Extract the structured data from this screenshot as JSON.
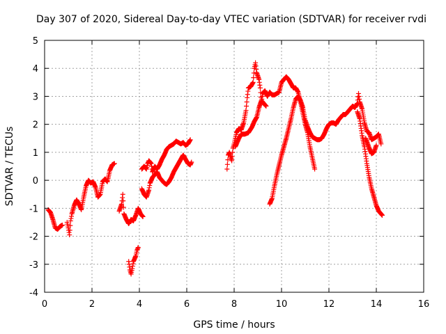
{
  "chart_data": {
    "type": "scatter",
    "title": "Day 307 of 2020, Sidereal Day-to-day VTEC variation (SDTVAR) for receiver rvdi",
    "xlabel": "GPS time / hours",
    "ylabel": "SDTVAR / TECUs",
    "xlim": [
      0,
      16
    ],
    "ylim": [
      -4,
      5
    ],
    "xticks": [
      0,
      2,
      4,
      6,
      8,
      10,
      12,
      14,
      16
    ],
    "yticks": [
      -4,
      -3,
      -2,
      -1,
      0,
      1,
      2,
      3,
      4,
      5
    ],
    "grid": true,
    "marker": "+",
    "color": "#ff0000",
    "segments": [
      [
        [
          0.15,
          -1.05
        ],
        [
          0.25,
          -1.15
        ],
        [
          0.35,
          -1.4
        ],
        [
          0.45,
          -1.7
        ],
        [
          0.55,
          -1.75
        ],
        [
          0.65,
          -1.65
        ],
        [
          0.75,
          -1.6
        ]
      ],
      [
        [
          0.95,
          -1.5
        ],
        [
          1.0,
          -1.7
        ],
        [
          1.05,
          -1.95
        ],
        [
          1.1,
          -1.45
        ],
        [
          1.15,
          -1.2
        ],
        [
          1.25,
          -0.9
        ],
        [
          1.35,
          -0.7
        ],
        [
          1.45,
          -0.85
        ],
        [
          1.55,
          -1.05
        ],
        [
          1.65,
          -0.6
        ],
        [
          1.75,
          -0.2
        ],
        [
          1.85,
          0.0
        ],
        [
          1.95,
          -0.1
        ],
        [
          2.05,
          -0.05
        ],
        [
          2.15,
          -0.25
        ],
        [
          2.25,
          -0.6
        ],
        [
          2.35,
          -0.5
        ],
        [
          2.45,
          -0.05
        ],
        [
          2.55,
          0.05
        ],
        [
          2.65,
          -0.05
        ],
        [
          2.75,
          0.35
        ],
        [
          2.85,
          0.55
        ],
        [
          2.95,
          0.6
        ]
      ],
      [
        [
          3.15,
          -1.1
        ],
        [
          3.25,
          -0.85
        ],
        [
          3.3,
          -0.5
        ],
        [
          3.35,
          -1.2
        ],
        [
          3.45,
          -1.4
        ],
        [
          3.55,
          -1.55
        ],
        [
          3.65,
          -1.4
        ],
        [
          3.75,
          -1.45
        ],
        [
          3.85,
          -1.25
        ],
        [
          3.95,
          -1.0
        ],
        [
          4.05,
          -1.2
        ],
        [
          4.15,
          -1.3
        ]
      ],
      [
        [
          3.55,
          -2.9
        ],
        [
          3.6,
          -3.2
        ],
        [
          3.65,
          -3.35
        ],
        [
          3.7,
          -3.15
        ],
        [
          3.75,
          -2.9
        ],
        [
          3.85,
          -2.7
        ],
        [
          3.9,
          -2.5
        ],
        [
          3.95,
          -2.4
        ]
      ],
      [
        [
          4.1,
          0.4
        ],
        [
          4.2,
          0.5
        ],
        [
          4.3,
          0.4
        ],
        [
          4.35,
          0.6
        ],
        [
          4.4,
          0.7
        ],
        [
          4.5,
          0.6
        ],
        [
          4.55,
          0.3
        ],
        [
          4.65,
          0.5
        ],
        [
          4.75,
          0.4
        ],
        [
          4.85,
          0.55
        ],
        [
          4.95,
          0.75
        ],
        [
          5.05,
          0.9
        ],
        [
          5.15,
          1.1
        ],
        [
          5.25,
          1.2
        ],
        [
          5.35,
          1.25
        ],
        [
          5.45,
          1.3
        ],
        [
          5.55,
          1.4
        ],
        [
          5.65,
          1.35
        ],
        [
          5.75,
          1.3
        ],
        [
          5.85,
          1.35
        ],
        [
          5.95,
          1.25
        ],
        [
          6.05,
          1.3
        ],
        [
          6.15,
          1.45
        ]
      ],
      [
        [
          4.1,
          -0.3
        ],
        [
          4.2,
          -0.5
        ],
        [
          4.3,
          -0.6
        ],
        [
          4.4,
          -0.35
        ],
        [
          4.45,
          -0.1
        ],
        [
          4.55,
          0.1
        ],
        [
          4.65,
          0.2
        ],
        [
          4.75,
          0.3
        ],
        [
          4.85,
          0.1
        ],
        [
          4.95,
          0.0
        ],
        [
          5.05,
          -0.1
        ],
        [
          5.15,
          -0.15
        ],
        [
          5.25,
          -0.05
        ],
        [
          5.35,
          0.1
        ],
        [
          5.45,
          0.3
        ],
        [
          5.55,
          0.45
        ],
        [
          5.65,
          0.6
        ],
        [
          5.75,
          0.75
        ],
        [
          5.85,
          0.9
        ],
        [
          5.95,
          0.75
        ],
        [
          6.05,
          0.6
        ],
        [
          6.15,
          0.55
        ],
        [
          6.2,
          0.65
        ]
      ],
      [
        [
          7.7,
          0.4
        ],
        [
          7.75,
          0.9
        ],
        [
          7.8,
          1.0
        ],
        [
          7.9,
          0.7
        ],
        [
          7.95,
          1.15
        ],
        [
          8.0,
          1.3
        ],
        [
          8.05,
          1.5
        ],
        [
          8.1,
          1.7
        ],
        [
          8.2,
          1.85
        ],
        [
          8.3,
          1.8
        ],
        [
          8.4,
          2.05
        ],
        [
          8.5,
          2.5
        ],
        [
          8.55,
          2.95
        ],
        [
          8.6,
          3.3
        ],
        [
          8.7,
          3.35
        ],
        [
          8.8,
          3.5
        ],
        [
          8.85,
          4.0
        ],
        [
          8.9,
          4.2
        ],
        [
          8.95,
          3.85
        ],
        [
          9.05,
          3.6
        ],
        [
          9.1,
          3.3
        ],
        [
          9.15,
          2.8
        ],
        [
          9.2,
          3.1
        ],
        [
          9.3,
          3.2
        ],
        [
          9.4,
          3.0
        ],
        [
          9.5,
          3.15
        ],
        [
          9.6,
          3.05
        ],
        [
          9.7,
          3.05
        ],
        [
          9.8,
          3.1
        ],
        [
          9.9,
          3.15
        ],
        [
          10.0,
          3.5
        ],
        [
          10.1,
          3.6
        ],
        [
          10.2,
          3.7
        ],
        [
          10.3,
          3.6
        ],
        [
          10.4,
          3.45
        ],
        [
          10.5,
          3.3
        ],
        [
          10.6,
          3.3
        ],
        [
          10.7,
          3.15
        ],
        [
          10.8,
          2.8
        ],
        [
          10.9,
          2.4
        ],
        [
          11.0,
          2.0
        ],
        [
          11.1,
          1.7
        ],
        [
          11.2,
          1.2
        ],
        [
          11.3,
          0.8
        ],
        [
          11.4,
          0.4
        ]
      ],
      [
        [
          8.05,
          1.2
        ],
        [
          8.2,
          1.5
        ],
        [
          8.3,
          1.65
        ],
        [
          8.45,
          1.65
        ],
        [
          8.6,
          1.7
        ],
        [
          8.75,
          1.9
        ],
        [
          8.85,
          2.1
        ],
        [
          8.95,
          2.25
        ],
        [
          9.05,
          2.6
        ],
        [
          9.15,
          2.85
        ],
        [
          9.25,
          2.75
        ],
        [
          9.35,
          2.65
        ]
      ],
      [
        [
          9.5,
          -0.85
        ],
        [
          9.6,
          -0.65
        ],
        [
          9.7,
          -0.2
        ],
        [
          9.8,
          0.2
        ],
        [
          9.9,
          0.55
        ],
        [
          10.0,
          0.9
        ],
        [
          10.1,
          1.2
        ],
        [
          10.2,
          1.5
        ],
        [
          10.3,
          1.85
        ],
        [
          10.4,
          2.2
        ],
        [
          10.5,
          2.6
        ],
        [
          10.6,
          2.9
        ],
        [
          10.7,
          3.0
        ],
        [
          10.8,
          2.85
        ],
        [
          10.9,
          2.6
        ],
        [
          11.0,
          2.15
        ],
        [
          11.1,
          1.9
        ],
        [
          11.2,
          1.7
        ],
        [
          11.3,
          1.55
        ],
        [
          11.4,
          1.5
        ],
        [
          11.5,
          1.45
        ],
        [
          11.6,
          1.45
        ],
        [
          11.7,
          1.5
        ],
        [
          11.8,
          1.65
        ],
        [
          11.9,
          1.85
        ],
        [
          12.0,
          2.0
        ],
        [
          12.1,
          2.05
        ],
        [
          12.2,
          2.05
        ],
        [
          12.3,
          2.0
        ],
        [
          12.4,
          2.15
        ],
        [
          12.5,
          2.25
        ],
        [
          12.6,
          2.35
        ],
        [
          12.7,
          2.35
        ],
        [
          12.8,
          2.45
        ],
        [
          12.9,
          2.55
        ],
        [
          13.0,
          2.65
        ],
        [
          13.1,
          2.6
        ],
        [
          13.2,
          2.75
        ],
        [
          13.25,
          3.1
        ],
        [
          13.3,
          2.8
        ],
        [
          13.4,
          2.55
        ],
        [
          13.5,
          2.05
        ],
        [
          13.6,
          1.75
        ],
        [
          13.7,
          1.7
        ],
        [
          13.8,
          1.45
        ],
        [
          13.9,
          1.5
        ],
        [
          14.0,
          1.55
        ],
        [
          14.1,
          1.65
        ],
        [
          14.2,
          1.3
        ]
      ],
      [
        [
          13.2,
          2.45
        ],
        [
          13.3,
          2.2
        ],
        [
          13.4,
          1.6
        ],
        [
          13.5,
          1.2
        ],
        [
          13.6,
          0.6
        ],
        [
          13.7,
          0.1
        ],
        [
          13.8,
          -0.3
        ],
        [
          13.9,
          -0.6
        ],
        [
          14.0,
          -0.9
        ],
        [
          14.1,
          -1.1
        ],
        [
          14.2,
          -1.2
        ],
        [
          14.25,
          -1.25
        ]
      ],
      [
        [
          13.55,
          1.5
        ],
        [
          13.7,
          1.15
        ],
        [
          13.8,
          0.95
        ],
        [
          13.9,
          1.0
        ],
        [
          14.0,
          1.25
        ]
      ]
    ]
  }
}
